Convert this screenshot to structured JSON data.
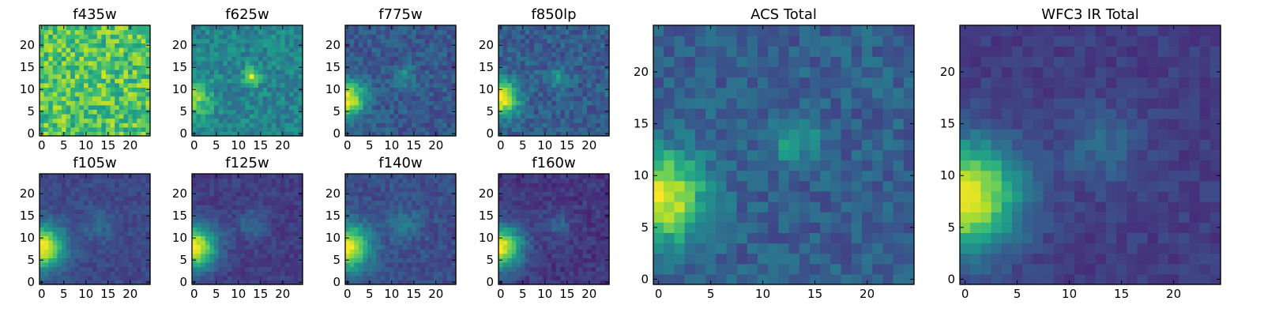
{
  "figure": {
    "colormap": "viridis",
    "colormap_stops": [
      "#440154",
      "#482878",
      "#3e4989",
      "#31688e",
      "#26828e",
      "#1f9e89",
      "#35b779",
      "#6ece58",
      "#b5de2b",
      "#fde725"
    ],
    "model": {
      "description_source": "pixel values estimated from image",
      "grid_size": 25
    }
  },
  "chart_data": [
    {
      "type": "heatmap",
      "title": "f435w",
      "grid": [
        25,
        25
      ],
      "xlim": [
        0,
        24
      ],
      "ylim": [
        0,
        24
      ],
      "xticks": [
        "0",
        "5",
        "10",
        "15",
        "20"
      ],
      "yticks": [
        "0",
        "5",
        "10",
        "15",
        "20"
      ],
      "features": {
        "background": 0.72,
        "noise": 0.2,
        "source1": [
          0,
          8,
          0.0,
          2.8
        ],
        "source2": [
          13,
          13,
          0.05,
          1.5
        ]
      }
    },
    {
      "type": "heatmap",
      "title": "f625w",
      "grid": [
        25,
        25
      ],
      "xlim": [
        0,
        24
      ],
      "ylim": [
        0,
        24
      ],
      "xticks": [
        "0",
        "5",
        "10",
        "15",
        "20"
      ],
      "yticks": [
        "0",
        "5",
        "10",
        "15",
        "20"
      ],
      "features": {
        "background": 0.45,
        "noise": 0.12,
        "source1": [
          0,
          8,
          0.35,
          2.8
        ],
        "source2": [
          13,
          13,
          0.5,
          1.3
        ]
      }
    },
    {
      "type": "heatmap",
      "title": "f775w",
      "grid": [
        25,
        25
      ],
      "xlim": [
        0,
        24
      ],
      "ylim": [
        0,
        24
      ],
      "xticks": [
        "0",
        "5",
        "10",
        "15",
        "20"
      ],
      "yticks": [
        "0",
        "5",
        "10",
        "15",
        "20"
      ],
      "features": {
        "background": 0.28,
        "noise": 0.1,
        "source1": [
          0,
          8,
          0.72,
          2.8
        ],
        "source2": [
          13,
          13,
          0.22,
          1.6
        ]
      }
    },
    {
      "type": "heatmap",
      "title": "f850lp",
      "grid": [
        25,
        25
      ],
      "xlim": [
        0,
        24
      ],
      "ylim": [
        0,
        24
      ],
      "xticks": [
        "0",
        "5",
        "10",
        "15",
        "20"
      ],
      "yticks": [
        "0",
        "5",
        "10",
        "15",
        "20"
      ],
      "features": {
        "background": 0.3,
        "noise": 0.11,
        "source1": [
          0,
          8,
          0.72,
          2.8
        ],
        "source2": [
          13,
          13,
          0.18,
          1.6
        ]
      }
    },
    {
      "type": "heatmap",
      "title": "f105w",
      "grid": [
        25,
        25
      ],
      "xlim": [
        0,
        24
      ],
      "ylim": [
        0,
        24
      ],
      "xticks": [
        "0",
        "5",
        "10",
        "15",
        "20"
      ],
      "yticks": [
        "0",
        "5",
        "10",
        "15",
        "20"
      ],
      "features": {
        "background": 0.22,
        "noise": 0.06,
        "source1": [
          0,
          8,
          0.78,
          3.5
        ],
        "source2": [
          13,
          13,
          0.12,
          2.5
        ]
      }
    },
    {
      "type": "heatmap",
      "title": "f125w",
      "grid": [
        25,
        25
      ],
      "xlim": [
        0,
        24
      ],
      "ylim": [
        0,
        24
      ],
      "xticks": [
        "0",
        "5",
        "10",
        "15",
        "20"
      ],
      "yticks": [
        "0",
        "5",
        "10",
        "15",
        "20"
      ],
      "features": {
        "background": 0.18,
        "noise": 0.06,
        "source1": [
          0,
          8,
          0.8,
          3.5
        ],
        "source2": [
          13,
          13,
          0.14,
          2.5
        ]
      }
    },
    {
      "type": "heatmap",
      "title": "f140w",
      "grid": [
        25,
        25
      ],
      "xlim": [
        0,
        24
      ],
      "ylim": [
        0,
        24
      ],
      "xticks": [
        "0",
        "5",
        "10",
        "15",
        "20"
      ],
      "yticks": [
        "0",
        "5",
        "10",
        "15",
        "20"
      ],
      "features": {
        "background": 0.24,
        "noise": 0.07,
        "source1": [
          0,
          8,
          0.76,
          3.5
        ],
        "source2": [
          13,
          13,
          0.16,
          2.5
        ]
      }
    },
    {
      "type": "heatmap",
      "title": "f160w",
      "grid": [
        25,
        25
      ],
      "xlim": [
        0,
        24
      ],
      "ylim": [
        0,
        24
      ],
      "xticks": [
        "0",
        "5",
        "10",
        "15",
        "20"
      ],
      "yticks": [
        "0",
        "5",
        "10",
        "15",
        "20"
      ],
      "features": {
        "background": 0.16,
        "noise": 0.07,
        "source1": [
          0,
          8,
          0.82,
          3.4
        ],
        "source2": [
          13,
          13,
          0.14,
          2.5
        ]
      }
    },
    {
      "type": "heatmap",
      "title": "ACS Total",
      "grid": [
        25,
        25
      ],
      "xlim": [
        0,
        24
      ],
      "ylim": [
        0,
        24
      ],
      "xticks": [
        "0",
        "5",
        "10",
        "15",
        "20"
      ],
      "yticks": [
        "0",
        "5",
        "10",
        "15",
        "20"
      ],
      "features": {
        "background": 0.3,
        "noise": 0.1,
        "source1": [
          0,
          8,
          0.7,
          3.0
        ],
        "source2": [
          13,
          13.5,
          0.32,
          1.5
        ]
      }
    },
    {
      "type": "heatmap",
      "title": "WFC3 IR Total",
      "grid": [
        25,
        25
      ],
      "xlim": [
        0,
        24
      ],
      "ylim": [
        0,
        24
      ],
      "xticks": [
        "0",
        "5",
        "10",
        "15",
        "20"
      ],
      "yticks": [
        "0",
        "5",
        "10",
        "15",
        "20"
      ],
      "features": {
        "background": 0.18,
        "noise": 0.055,
        "source1": [
          0,
          8,
          0.82,
          3.6
        ],
        "source2": [
          13,
          13,
          0.16,
          2.6
        ]
      }
    }
  ]
}
